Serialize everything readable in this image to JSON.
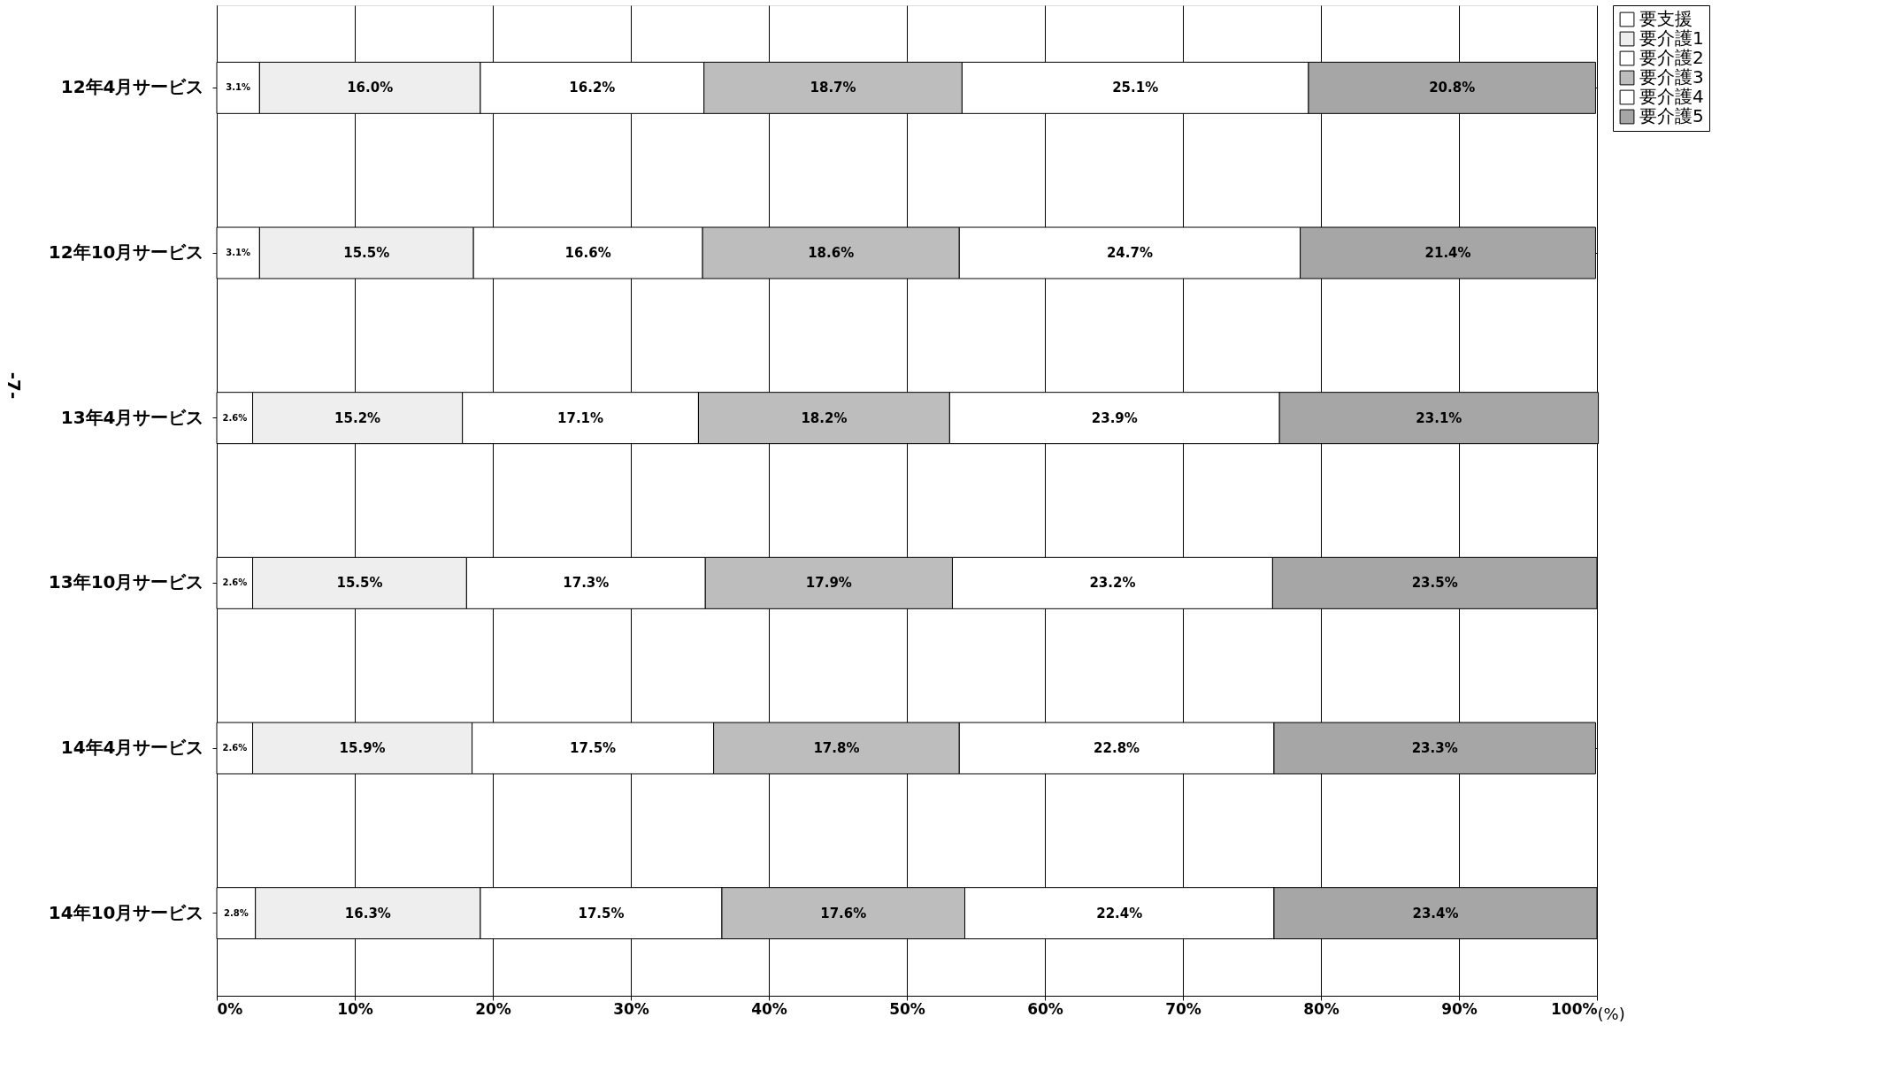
{
  "chart_data": {
    "type": "bar",
    "orientation": "horizontal",
    "stacked": true,
    "categories": [
      "12年4月サービス",
      "12年10月サービス",
      "13年4月サービス",
      "13年10月サービス",
      "14年4月サービス",
      "14年10月サービス"
    ],
    "series": [
      {
        "name": "要支援",
        "color": "#ffffff",
        "values": [
          3.1,
          3.1,
          2.6,
          2.6,
          2.6,
          2.8
        ],
        "value_labels": [
          "3.1%",
          "3.1%",
          "2.6%",
          "2.6%",
          "2.6%",
          "2.8%"
        ]
      },
      {
        "name": "要介護1",
        "color": "#eeeeee",
        "values": [
          16.0,
          15.5,
          15.2,
          15.5,
          15.9,
          16.3
        ],
        "value_labels": [
          "16.0%",
          "15.5%",
          "15.2%",
          "15.5%",
          "15.9%",
          "16.3%"
        ]
      },
      {
        "name": "要介護2",
        "color": "#ffffff",
        "values": [
          16.2,
          16.6,
          17.1,
          17.3,
          17.5,
          17.5
        ],
        "value_labels": [
          "16.2%",
          "16.6%",
          "17.1%",
          "17.3%",
          "17.5%",
          "17.5%"
        ]
      },
      {
        "name": "要介護3",
        "color": "#bdbdbd",
        "values": [
          18.7,
          18.6,
          18.2,
          17.9,
          17.8,
          17.6
        ],
        "value_labels": [
          "18.7%",
          "18.6%",
          "18.2%",
          "17.9%",
          "17.8%",
          "17.6%"
        ]
      },
      {
        "name": "要介護4",
        "color": "#ffffff",
        "values": [
          25.1,
          24.7,
          23.9,
          23.2,
          22.8,
          22.4
        ],
        "value_labels": [
          "25.1%",
          "24.7%",
          "23.9%",
          "23.2%",
          "22.8%",
          "22.4%"
        ]
      },
      {
        "name": "要介護5",
        "color": "#a6a6a6",
        "values": [
          20.8,
          21.4,
          23.1,
          23.5,
          23.3,
          23.4
        ],
        "value_labels": [
          "20.8%",
          "21.4%",
          "23.1%",
          "23.5%",
          "23.3%",
          "23.4%"
        ]
      }
    ],
    "xlim": [
      0,
      100
    ],
    "xticks": [
      {
        "value": 0,
        "label": "0%"
      },
      {
        "value": 10,
        "label": "10%"
      },
      {
        "value": 20,
        "label": "20%"
      },
      {
        "value": 30,
        "label": "30%"
      },
      {
        "value": 40,
        "label": "40%"
      },
      {
        "value": 50,
        "label": "50%"
      },
      {
        "value": 60,
        "label": "60%"
      },
      {
        "value": 70,
        "label": "70%"
      },
      {
        "value": 80,
        "label": "80%"
      },
      {
        "value": 90,
        "label": "90%"
      },
      {
        "value": 100,
        "label": "100%"
      }
    ],
    "xlabel": "(%)",
    "annotations": [
      "-7-"
    ],
    "grid": true,
    "legend": "right"
  }
}
